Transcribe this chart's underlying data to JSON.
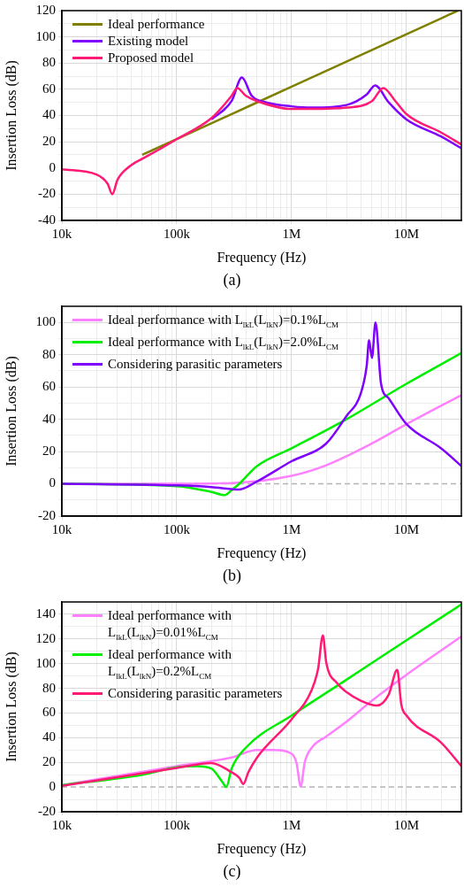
{
  "chart_data": [
    {
      "type": "line",
      "xlabel": "Frequency (Hz)",
      "ylabel": "Insertion Loss (dB)",
      "annotations": [
        "(a)"
      ],
      "log": "x",
      "grid": true,
      "legend": "top left",
      "xlim": [
        10000,
        30000000
      ],
      "xticks": [
        {
          "value": 10000,
          "label": "10k"
        },
        {
          "value": 20000,
          "label": null
        },
        {
          "value": 30000,
          "label": null
        },
        {
          "value": 40000,
          "label": null
        },
        {
          "value": 50000,
          "label": null
        },
        {
          "value": 60000,
          "label": null
        },
        {
          "value": 70000,
          "label": null
        },
        {
          "value": 80000,
          "label": null
        },
        {
          "value": 90000,
          "label": null
        },
        {
          "value": 100000,
          "label": "100k"
        },
        {
          "value": 200000,
          "label": null
        },
        {
          "value": 300000,
          "label": null
        },
        {
          "value": 400000,
          "label": null
        },
        {
          "value": 500000,
          "label": null
        },
        {
          "value": 600000,
          "label": null
        },
        {
          "value": 700000,
          "label": null
        },
        {
          "value": 800000,
          "label": null
        },
        {
          "value": 900000,
          "label": null
        },
        {
          "value": 1000000,
          "label": "1M"
        },
        {
          "value": 2000000,
          "label": null
        },
        {
          "value": 3000000,
          "label": null
        },
        {
          "value": 4000000,
          "label": null
        },
        {
          "value": 5000000,
          "label": null
        },
        {
          "value": 6000000,
          "label": null
        },
        {
          "value": 7000000,
          "label": null
        },
        {
          "value": 8000000,
          "label": null
        },
        {
          "value": 9000000,
          "label": null
        },
        {
          "value": 10000000,
          "label": "10M"
        },
        {
          "value": 20000000,
          "label": null
        }
      ],
      "ylim": [
        -40,
        120
      ],
      "yticks": [
        -40,
        {
          "value": -30,
          "label": null
        },
        -20,
        {
          "value": -10,
          "label": null
        },
        0,
        {
          "value": 10,
          "label": null
        },
        20,
        {
          "value": 30,
          "label": null
        },
        40,
        {
          "value": 50,
          "label": null
        },
        60,
        {
          "value": 70,
          "label": null
        },
        80,
        {
          "value": 90,
          "label": null
        },
        100,
        {
          "value": 110,
          "label": null
        },
        120
      ],
      "series": [
        {
          "name": "Ideal performance",
          "color": "#808000",
          "x": [
            50000,
            100000,
            1000000,
            10000000,
            28000000
          ],
          "values": [
            10,
            22,
            62,
            102,
            120
          ]
        },
        {
          "name": "Existing model",
          "color": "#7f00ff",
          "x": [
            200000,
            300000,
            369000,
            450000,
            600000,
            1000000,
            1500000,
            3000000,
            4500000,
            5330000,
            7000000,
            10000000,
            20000000,
            30000000
          ],
          "values": [
            37,
            51,
            69,
            55,
            50,
            47,
            46,
            48,
            56,
            63,
            50,
            37,
            24,
            15
          ]
        },
        {
          "name": "Proposed model",
          "color": "#ff1a75",
          "x": [
            10000,
            20000,
            25000,
            27500,
            30500,
            38600,
            50000,
            70000,
            100000,
            200000,
            300000,
            336000,
            400000,
            500000,
            1000000,
            1500000,
            3000000,
            5000000,
            6280000,
            8000000,
            10000000,
            20000000,
            30000000
          ],
          "values": [
            -1,
            -5,
            -12,
            -20,
            -9,
            1,
            7,
            14,
            22,
            38,
            55,
            61,
            55,
            51,
            45,
            45,
            46,
            51,
            61,
            51,
            41,
            27,
            18
          ]
        }
      ]
    },
    {
      "type": "line",
      "xlabel": "Frequency (Hz)",
      "ylabel": "Insertion Loss (dB)",
      "annotations": [
        "(b)"
      ],
      "log": "x",
      "grid": true,
      "legend": "top left",
      "ref_lines": [
        {
          "axis": "y",
          "value": 0,
          "color": "#b4b4b4",
          "line_style": "dashed"
        }
      ],
      "xlim": [
        10000,
        30000000
      ],
      "xticks": [
        {
          "value": 10000,
          "label": "10k"
        },
        {
          "value": 20000,
          "label": null
        },
        {
          "value": 30000,
          "label": null
        },
        {
          "value": 40000,
          "label": null
        },
        {
          "value": 50000,
          "label": null
        },
        {
          "value": 60000,
          "label": null
        },
        {
          "value": 70000,
          "label": null
        },
        {
          "value": 80000,
          "label": null
        },
        {
          "value": 90000,
          "label": null
        },
        {
          "value": 100000,
          "label": "100k"
        },
        {
          "value": 200000,
          "label": null
        },
        {
          "value": 300000,
          "label": null
        },
        {
          "value": 400000,
          "label": null
        },
        {
          "value": 500000,
          "label": null
        },
        {
          "value": 600000,
          "label": null
        },
        {
          "value": 700000,
          "label": null
        },
        {
          "value": 800000,
          "label": null
        },
        {
          "value": 900000,
          "label": null
        },
        {
          "value": 1000000,
          "label": "1M"
        },
        {
          "value": 2000000,
          "label": null
        },
        {
          "value": 3000000,
          "label": null
        },
        {
          "value": 4000000,
          "label": null
        },
        {
          "value": 5000000,
          "label": null
        },
        {
          "value": 6000000,
          "label": null
        },
        {
          "value": 7000000,
          "label": null
        },
        {
          "value": 8000000,
          "label": null
        },
        {
          "value": 9000000,
          "label": null
        },
        {
          "value": 10000000,
          "label": "10M"
        },
        {
          "value": 20000000,
          "label": null
        }
      ],
      "ylim": [
        -20,
        110
      ],
      "yticks": [
        -20,
        {
          "value": -10,
          "label": null
        },
        0,
        {
          "value": 10,
          "label": null
        },
        20,
        {
          "value": 30,
          "label": null
        },
        40,
        {
          "value": 50,
          "label": null
        },
        60,
        {
          "value": 70,
          "label": null
        },
        80,
        {
          "value": 90,
          "label": null
        },
        100
      ],
      "series": [
        {
          "name": "Ideal performance with L$_{lkL}$(L$_{lkN}$)=0.1%L$_{CM}$",
          "color": "#ff80ff",
          "x": [
            10000,
            100000,
            300000,
            1000000,
            2000000,
            5000000,
            10000000,
            30000000
          ],
          "values": [
            0,
            0,
            0.5,
            5,
            11.5,
            25,
            37,
            55
          ]
        },
        {
          "name": "Ideal performance with L$_{lkL}$(L$_{lkN}$)=2.0%L$_{CM}$",
          "color": "#00ee00",
          "x": [
            10000,
            100000,
            200000,
            260000,
            300000,
            350000,
            500000,
            1000000,
            3000000,
            10000000,
            30000000
          ],
          "values": [
            0,
            -1.5,
            -5,
            -7,
            -4,
            0,
            11,
            22,
            40,
            62,
            81
          ]
        },
        {
          "name": "Considering parasitic parameters",
          "color": "#7f00ff",
          "x": [
            10000,
            100000,
            200000,
            350000,
            500000,
            1000000,
            2000000,
            3000000,
            4000000,
            4500000,
            4720000,
            5000000,
            5370000,
            6000000,
            7000000,
            10000000,
            20000000,
            30000000
          ],
          "values": [
            0,
            -1,
            -2,
            -3.5,
            1.5,
            14,
            25,
            42,
            56,
            73,
            89,
            78,
            100,
            62,
            53,
            37,
            22,
            11
          ]
        }
      ]
    },
    {
      "type": "line",
      "xlabel": "Frequency (Hz)",
      "ylabel": "Insertion Loss (dB)",
      "annotations": [
        "(c)"
      ],
      "log": "x",
      "grid": true,
      "legend": "top left",
      "ref_lines": [
        {
          "axis": "y",
          "value": 0,
          "color": "#b4b4b4",
          "line_style": "dashed"
        }
      ],
      "xlim": [
        10000,
        30000000
      ],
      "xticks": [
        {
          "value": 10000,
          "label": "10k"
        },
        {
          "value": 20000,
          "label": null
        },
        {
          "value": 30000,
          "label": null
        },
        {
          "value": 40000,
          "label": null
        },
        {
          "value": 50000,
          "label": null
        },
        {
          "value": 60000,
          "label": null
        },
        {
          "value": 70000,
          "label": null
        },
        {
          "value": 80000,
          "label": null
        },
        {
          "value": 90000,
          "label": null
        },
        {
          "value": 100000,
          "label": "100k"
        },
        {
          "value": 200000,
          "label": null
        },
        {
          "value": 300000,
          "label": null
        },
        {
          "value": 400000,
          "label": null
        },
        {
          "value": 500000,
          "label": null
        },
        {
          "value": 600000,
          "label": null
        },
        {
          "value": 700000,
          "label": null
        },
        {
          "value": 800000,
          "label": null
        },
        {
          "value": 900000,
          "label": null
        },
        {
          "value": 1000000,
          "label": "1M"
        },
        {
          "value": 2000000,
          "label": null
        },
        {
          "value": 3000000,
          "label": null
        },
        {
          "value": 4000000,
          "label": null
        },
        {
          "value": 5000000,
          "label": null
        },
        {
          "value": 6000000,
          "label": null
        },
        {
          "value": 7000000,
          "label": null
        },
        {
          "value": 8000000,
          "label": null
        },
        {
          "value": 9000000,
          "label": null
        },
        {
          "value": 10000000,
          "label": "10M"
        },
        {
          "value": 20000000,
          "label": null
        }
      ],
      "ylim": [
        -20,
        150
      ],
      "yticks": [
        -20,
        {
          "value": -10,
          "label": null
        },
        0,
        {
          "value": 10,
          "label": null
        },
        20,
        {
          "value": 30,
          "label": null
        },
        40,
        {
          "value": 50,
          "label": null
        },
        60,
        {
          "value": 70,
          "label": null
        },
        80,
        {
          "value": 90,
          "label": null
        },
        100,
        {
          "value": 110,
          "label": null
        },
        120,
        {
          "value": 130,
          "label": null
        },
        140
      ],
      "series": [
        {
          "name": "Ideal performance with L$_{lkL}$(L$_{lkN}$)=0.01%L$_{CM}$",
          "color": "#ff80ff",
          "x": [
            10000,
            100000,
            300000,
            500000,
            700000,
            1000000,
            1100000,
            1200000,
            1300000,
            1500000,
            2000000,
            3000000,
            5000000,
            10000000,
            30000000
          ],
          "values": [
            1.5,
            17,
            24,
            30,
            30,
            27,
            20,
            0.5,
            20,
            32,
            41,
            53,
            70,
            91,
            122
          ]
        },
        {
          "name": "Ideal performance with L$_{lkL}$(L$_{lkN}$)=0.2%L$_{CM}$",
          "color": "#00ee00",
          "x": [
            10000,
            50000,
            100000,
            150000,
            200000,
            250000,
            270000,
            300000,
            400000,
            1000000,
            3000000,
            10000000,
            30000000
          ],
          "values": [
            1.5,
            10,
            16,
            17,
            15,
            4,
            0,
            15,
            32,
            58,
            87,
            119,
            148
          ]
        },
        {
          "name": "Considering parasitic parameters",
          "color": "#ff1a75",
          "x": [
            10000,
            100000,
            200000,
            300000,
            350000,
            380000,
            420000,
            500000,
            1000000,
            1500000,
            1700000,
            1870000,
            2000000,
            2500000,
            3000000,
            4000000,
            5500000,
            7000000,
            8300000,
            9000000,
            10000000,
            20000000,
            30000000
          ],
          "values": [
            1,
            15.5,
            19.5,
            12,
            7.5,
            2.5,
            12,
            24,
            55,
            79,
            96,
            123,
            101,
            84,
            77,
            70,
            66,
            75,
            95,
            67,
            58,
            36,
            17
          ]
        }
      ]
    }
  ]
}
